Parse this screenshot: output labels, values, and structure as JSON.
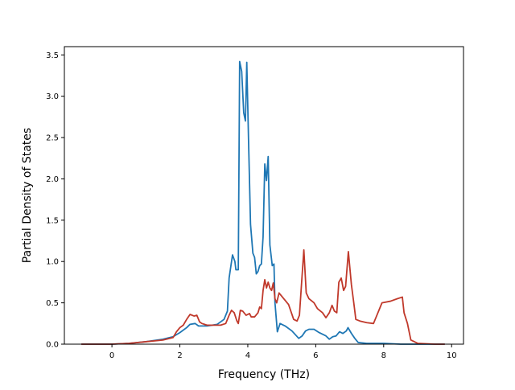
{
  "chart_data": {
    "type": "line",
    "title": "",
    "xlabel": "Frequency (THz)",
    "ylabel": "Partial Density of States",
    "xlim": [
      -1.4,
      10.35
    ],
    "ylim": [
      0.0,
      3.6
    ],
    "x_ticks": [
      0,
      2,
      4,
      6,
      8,
      10
    ],
    "x_tick_labels": [
      "0",
      "2",
      "4",
      "6",
      "8",
      "10"
    ],
    "y_ticks": [
      0.0,
      0.5,
      1.0,
      1.5,
      2.0,
      2.5,
      3.0,
      3.5
    ],
    "y_tick_labels": [
      "0.0",
      "0.5",
      "1.0",
      "1.5",
      "2.0",
      "2.5",
      "3.0",
      "3.5"
    ],
    "grid": false,
    "legend": "none",
    "series": [
      {
        "color": "#1f77b4",
        "points": [
          [
            -0.9,
            0.0
          ],
          [
            0.0,
            0.0
          ],
          [
            0.5,
            0.01
          ],
          [
            1.0,
            0.03
          ],
          [
            1.5,
            0.06
          ],
          [
            1.8,
            0.09
          ],
          [
            2.0,
            0.14
          ],
          [
            2.2,
            0.2
          ],
          [
            2.3,
            0.24
          ],
          [
            2.45,
            0.25
          ],
          [
            2.55,
            0.22
          ],
          [
            2.8,
            0.22
          ],
          [
            3.1,
            0.24
          ],
          [
            3.3,
            0.3
          ],
          [
            3.4,
            0.4
          ],
          [
            3.45,
            0.8
          ],
          [
            3.55,
            1.08
          ],
          [
            3.62,
            1.0
          ],
          [
            3.65,
            0.9
          ],
          [
            3.72,
            0.9
          ],
          [
            3.76,
            3.42
          ],
          [
            3.82,
            3.3
          ],
          [
            3.88,
            2.8
          ],
          [
            3.93,
            2.7
          ],
          [
            3.97,
            3.41
          ],
          [
            4.02,
            2.5
          ],
          [
            4.08,
            1.45
          ],
          [
            4.15,
            1.1
          ],
          [
            4.2,
            1.05
          ],
          [
            4.25,
            0.85
          ],
          [
            4.3,
            0.88
          ],
          [
            4.35,
            0.95
          ],
          [
            4.4,
            0.97
          ],
          [
            4.45,
            1.3
          ],
          [
            4.5,
            2.18
          ],
          [
            4.55,
            1.98
          ],
          [
            4.6,
            2.27
          ],
          [
            4.65,
            1.2
          ],
          [
            4.72,
            0.95
          ],
          [
            4.77,
            0.97
          ],
          [
            4.8,
            0.5
          ],
          [
            4.87,
            0.15
          ],
          [
            4.95,
            0.25
          ],
          [
            5.1,
            0.22
          ],
          [
            5.3,
            0.16
          ],
          [
            5.5,
            0.07
          ],
          [
            5.6,
            0.1
          ],
          [
            5.7,
            0.16
          ],
          [
            5.8,
            0.18
          ],
          [
            5.95,
            0.18
          ],
          [
            6.1,
            0.14
          ],
          [
            6.3,
            0.1
          ],
          [
            6.4,
            0.06
          ],
          [
            6.5,
            0.09
          ],
          [
            6.6,
            0.1
          ],
          [
            6.7,
            0.15
          ],
          [
            6.8,
            0.13
          ],
          [
            6.9,
            0.16
          ],
          [
            6.95,
            0.2
          ],
          [
            7.05,
            0.13
          ],
          [
            7.15,
            0.07
          ],
          [
            7.25,
            0.02
          ],
          [
            7.5,
            0.01
          ],
          [
            8.0,
            0.01
          ],
          [
            8.5,
            0.0
          ],
          [
            9.0,
            0.0
          ],
          [
            9.8,
            0.0
          ]
        ]
      },
      {
        "color": "#c0392b",
        "points": [
          [
            -0.9,
            0.0
          ],
          [
            0.0,
            0.0
          ],
          [
            0.5,
            0.01
          ],
          [
            1.0,
            0.03
          ],
          [
            1.5,
            0.05
          ],
          [
            1.8,
            0.08
          ],
          [
            1.9,
            0.15
          ],
          [
            2.0,
            0.2
          ],
          [
            2.1,
            0.23
          ],
          [
            2.2,
            0.3
          ],
          [
            2.3,
            0.36
          ],
          [
            2.42,
            0.34
          ],
          [
            2.5,
            0.35
          ],
          [
            2.58,
            0.27
          ],
          [
            2.65,
            0.25
          ],
          [
            2.8,
            0.23
          ],
          [
            3.0,
            0.23
          ],
          [
            3.2,
            0.23
          ],
          [
            3.35,
            0.25
          ],
          [
            3.45,
            0.35
          ],
          [
            3.52,
            0.41
          ],
          [
            3.6,
            0.38
          ],
          [
            3.68,
            0.28
          ],
          [
            3.72,
            0.25
          ],
          [
            3.78,
            0.41
          ],
          [
            3.85,
            0.4
          ],
          [
            3.95,
            0.35
          ],
          [
            4.05,
            0.37
          ],
          [
            4.1,
            0.33
          ],
          [
            4.2,
            0.33
          ],
          [
            4.3,
            0.38
          ],
          [
            4.35,
            0.45
          ],
          [
            4.4,
            0.43
          ],
          [
            4.45,
            0.65
          ],
          [
            4.5,
            0.78
          ],
          [
            4.55,
            0.68
          ],
          [
            4.6,
            0.75
          ],
          [
            4.65,
            0.68
          ],
          [
            4.7,
            0.65
          ],
          [
            4.75,
            0.74
          ],
          [
            4.8,
            0.55
          ],
          [
            4.85,
            0.5
          ],
          [
            4.92,
            0.62
          ],
          [
            5.0,
            0.58
          ],
          [
            5.2,
            0.48
          ],
          [
            5.35,
            0.3
          ],
          [
            5.45,
            0.28
          ],
          [
            5.52,
            0.35
          ],
          [
            5.58,
            0.72
          ],
          [
            5.65,
            1.14
          ],
          [
            5.72,
            0.62
          ],
          [
            5.8,
            0.55
          ],
          [
            5.95,
            0.5
          ],
          [
            6.05,
            0.43
          ],
          [
            6.2,
            0.38
          ],
          [
            6.3,
            0.32
          ],
          [
            6.4,
            0.38
          ],
          [
            6.48,
            0.47
          ],
          [
            6.55,
            0.4
          ],
          [
            6.62,
            0.38
          ],
          [
            6.68,
            0.75
          ],
          [
            6.75,
            0.8
          ],
          [
            6.82,
            0.65
          ],
          [
            6.88,
            0.7
          ],
          [
            6.96,
            1.12
          ],
          [
            7.05,
            0.72
          ],
          [
            7.12,
            0.5
          ],
          [
            7.18,
            0.3
          ],
          [
            7.3,
            0.28
          ],
          [
            7.5,
            0.26
          ],
          [
            7.7,
            0.25
          ],
          [
            7.8,
            0.35
          ],
          [
            7.9,
            0.45
          ],
          [
            7.95,
            0.5
          ],
          [
            8.2,
            0.52
          ],
          [
            8.4,
            0.55
          ],
          [
            8.55,
            0.57
          ],
          [
            8.6,
            0.38
          ],
          [
            8.7,
            0.25
          ],
          [
            8.8,
            0.05
          ],
          [
            9.0,
            0.01
          ],
          [
            9.5,
            0.0
          ],
          [
            9.8,
            0.0
          ]
        ]
      }
    ]
  }
}
